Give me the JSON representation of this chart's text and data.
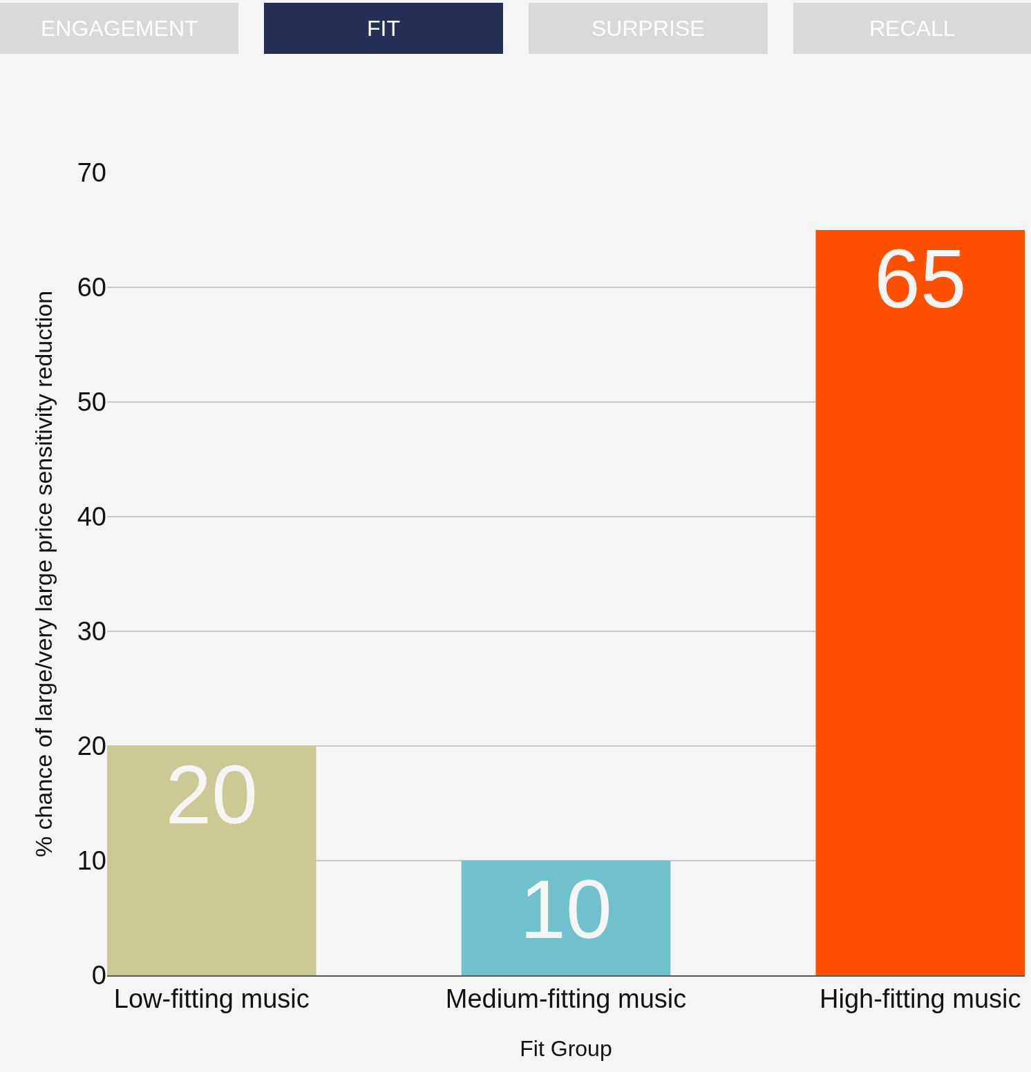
{
  "chart_data": {
    "type": "bar",
    "xlabel": "Fit Group",
    "ylabel": "% chance of large/very large price sensitivity reduction",
    "annotations": [
      "ENGAGEMENT",
      "FIT",
      "SURPRISE",
      "RECALL"
    ],
    "categories": [
      "Low-fitting music",
      "Medium-fitting music",
      "High-fitting music"
    ],
    "values": [
      20,
      10,
      65
    ],
    "colors": [
      "#ccc994",
      "#70c1cc",
      "#ff4f00"
    ],
    "ylim": [
      0,
      70
    ],
    "yticks": [
      0,
      10,
      20,
      30,
      40,
      50,
      60,
      70
    ],
    "grid": "y",
    "data_labels": true
  }
}
